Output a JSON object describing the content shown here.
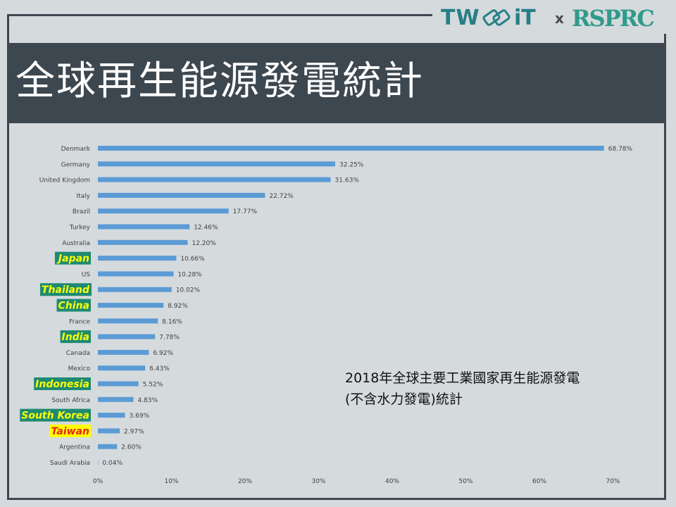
{
  "slide": {
    "title": "全球再生能源發電統計",
    "annotation_line1": "2018年全球主要工業國家再生能源發電",
    "annotation_line2": "(不含水力發電)統計"
  },
  "logo": {
    "left_text_a": "TW",
    "left_text_b": "iT",
    "separator": "x",
    "right_text": "RSPRC",
    "icon": "link-chain-icon"
  },
  "colors": {
    "bar": "#5b9bd5",
    "title_bar": "#3d474f",
    "background": "#d5dadd",
    "highlight_bg_green": "#1e8a72",
    "highlight_text_yellow": "#ffff00",
    "highlight_bg_yellow": "#ffff00",
    "highlight_text_red": "#e8231c"
  },
  "chart_data": {
    "type": "bar",
    "orientation": "horizontal",
    "categories": [
      "Denmark",
      "Germany",
      "United Kingdom",
      "Italy",
      "Brazil",
      "Turkey",
      "Australia",
      "Japan",
      "US",
      "Thailand",
      "China",
      "France",
      "India",
      "Canada",
      "Mexico",
      "Indonesia",
      "South Africa",
      "South Korea",
      "Taiwan",
      "Argentina",
      "Saudi Arabia"
    ],
    "values": [
      68.78,
      32.25,
      31.63,
      22.72,
      17.77,
      12.46,
      12.2,
      10.66,
      10.28,
      10.02,
      8.92,
      8.16,
      7.78,
      6.92,
      6.43,
      5.52,
      4.83,
      3.69,
      2.97,
      2.6,
      0.04
    ],
    "value_labels": [
      "68.78%",
      "32.25%",
      "31.63%",
      "22.72%",
      "17.77%",
      "12.46%",
      "12.20%",
      "10.66%",
      "10.28%",
      "10.02%",
      "8.92%",
      "8.16%",
      "7.78%",
      "6.92%",
      "6.43%",
      "5.52%",
      "4.83%",
      "3.69%",
      "2.97%",
      "2.60%",
      "0.04%"
    ],
    "highlights": {
      "Japan": "green",
      "Thailand": "green",
      "China": "green",
      "India": "green",
      "Indonesia": "green",
      "South Korea": "green",
      "Taiwan": "yellow"
    },
    "xlim": [
      0,
      70
    ],
    "x_ticks": [
      0,
      10,
      20,
      30,
      40,
      50,
      60,
      70
    ],
    "x_tick_labels": [
      "0%",
      "10%",
      "20%",
      "30%",
      "40%",
      "50%",
      "60%",
      "70%"
    ],
    "grid": false,
    "legend": "none"
  }
}
